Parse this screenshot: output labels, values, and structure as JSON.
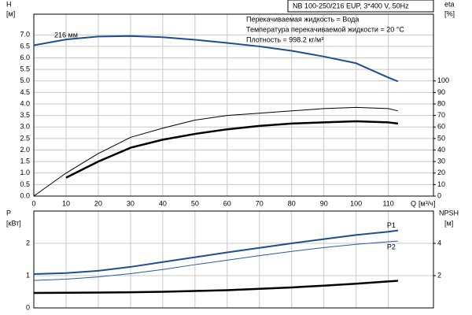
{
  "chart_data": [
    {
      "type": "line",
      "title": "NB 100-250/216 EUP, 3*400 V, 50Hz",
      "annotations": [
        "Перекачиваемая жидкость = Вода",
        "Температура перекачиваемой жидкости = 20 °C",
        "Плотность = 998.2 кг/м³"
      ],
      "ylabel": "H",
      "yunit": "[м]",
      "y2label": "eta",
      "y2unit": "[%]",
      "xlabel": "Q",
      "xunit": "[м³/ч]",
      "x": [
        0,
        10,
        20,
        30,
        40,
        50,
        60,
        70,
        80,
        90,
        100,
        110,
        113
      ],
      "xlim": [
        0,
        124
      ],
      "xticks": [
        0,
        10,
        20,
        30,
        40,
        50,
        60,
        70,
        80,
        90,
        100,
        110
      ],
      "ylim": [
        0,
        7.9
      ],
      "yticks": [
        {
          "value": 0,
          "label": "0.0"
        },
        0.5,
        {
          "value": 1,
          "label": "1.0"
        },
        1.5,
        {
          "value": 2,
          "label": "2.0"
        },
        2.5,
        {
          "value": 3,
          "label": "3.0"
        },
        3.5,
        {
          "value": 4,
          "label": "4.0"
        },
        4.5,
        {
          "value": 5,
          "label": "5.0"
        },
        5.5,
        {
          "value": 6,
          "label": "6.0"
        },
        6.5,
        {
          "value": 7,
          "label": "7.0"
        }
      ],
      "y2lim": [
        0,
        158
      ],
      "y2ticks": [
        0,
        10,
        20,
        30,
        40,
        50,
        60,
        70,
        80,
        90,
        100
      ],
      "grid": true,
      "series": [
        {
          "label": "216 мм",
          "color": "#1f4e8c",
          "values": [
            6.55,
            6.8,
            6.93,
            6.95,
            6.9,
            6.79,
            6.65,
            6.5,
            6.31,
            6.06,
            5.77,
            5.15,
            4.98
          ]
        },
        {
          "color": "#000000",
          "axis": "y2",
          "values": [
            0,
            20,
            37,
            51,
            59,
            66,
            70,
            72,
            74,
            76,
            77,
            76,
            74
          ]
        },
        {
          "color": "#000000",
          "axis": "y2",
          "values": [
            null,
            16,
            30,
            42,
            49,
            54,
            58,
            61,
            63,
            64,
            65,
            64,
            63
          ]
        }
      ]
    },
    {
      "type": "line",
      "ylabel": "P",
      "yunit": "[кВт]",
      "y2label": "NPSH",
      "y2unit": "[м]",
      "x": [
        0,
        10,
        20,
        30,
        40,
        50,
        60,
        70,
        80,
        90,
        100,
        110,
        113
      ],
      "xlim": [
        0,
        124
      ],
      "xticks": [
        0,
        10,
        20,
        30,
        40,
        50,
        60,
        70,
        80,
        90,
        100,
        110
      ],
      "ylim": [
        0,
        3
      ],
      "yticks": [
        0,
        1,
        2
      ],
      "y2lim": [
        0,
        6
      ],
      "y2ticks": [
        2,
        4
      ],
      "grid": true,
      "series": [
        {
          "name": "P1",
          "color": "#1f4e8c",
          "values": [
            1.05,
            1.08,
            1.15,
            1.27,
            1.42,
            1.57,
            1.72,
            1.86,
            2.0,
            2.13,
            2.26,
            2.36,
            2.4
          ]
        },
        {
          "name": "P2",
          "color": "#2a5a9a",
          "values": [
            0.85,
            0.89,
            0.96,
            1.06,
            1.19,
            1.34,
            1.48,
            1.62,
            1.75,
            1.87,
            1.97,
            2.05,
            2.07
          ]
        },
        {
          "color": "#000000",
          "axis": "y2",
          "values": [
            0.93,
            0.94,
            0.95,
            0.97,
            1.0,
            1.05,
            1.1,
            1.18,
            1.27,
            1.38,
            1.5,
            1.64,
            1.68
          ]
        }
      ]
    }
  ]
}
